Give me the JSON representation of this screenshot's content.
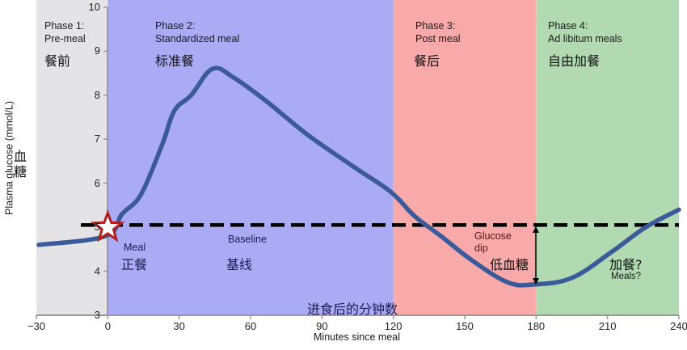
{
  "chart_data": {
    "type": "line",
    "title": "",
    "xlabel": "Minutes since meal",
    "xlabel_cn": "进食后的分钟数",
    "ylabel": "Plasma glucose (mmol/L)",
    "ylabel_cn": "血糖",
    "xlim": [
      -30,
      240
    ],
    "ylim": [
      3,
      10
    ],
    "x_ticks": [
      -30,
      0,
      30,
      60,
      90,
      120,
      150,
      180,
      210,
      240
    ],
    "x_tick_labels": [
      "−30",
      "0",
      "30",
      "60",
      "90",
      "120",
      "150",
      "180",
      "210",
      "240"
    ],
    "y_ticks": [
      3,
      4,
      5,
      6,
      7,
      8,
      9,
      10
    ],
    "grid": false,
    "series": [
      {
        "name": "Plasma glucose",
        "color": "#3a5a9a",
        "x": [
          -29,
          -1,
          6,
          14,
          23,
          28,
          35,
          44,
          53,
          67,
          84,
          104,
          119,
          129,
          140,
          153,
          168,
          179,
          195,
          212,
          226,
          240
        ],
        "y": [
          4.6,
          4.8,
          5.3,
          5.75,
          6.9,
          7.65,
          8.0,
          8.6,
          8.4,
          7.85,
          7.1,
          6.35,
          5.8,
          5.25,
          4.8,
          4.25,
          3.75,
          3.7,
          3.85,
          4.45,
          5.0,
          5.4
        ]
      }
    ],
    "baseline": {
      "y": 5.05,
      "style": "dashed",
      "color": "#000000",
      "label": "Baseline",
      "label_cn": "基线"
    },
    "phases": [
      {
        "x_start": -30,
        "x_end": 0,
        "title": "Phase 1:",
        "subtitle": "Pre-meal",
        "cn": "餐前",
        "color": "#e4e4e6"
      },
      {
        "x_start": 0,
        "x_end": 120,
        "title": "Phase 2:",
        "subtitle": "Standardized meal",
        "cn": "标准餐",
        "color": "#aaaaf5"
      },
      {
        "x_start": 120,
        "x_end": 180,
        "title": "Phase 3:",
        "subtitle": "Post meal",
        "cn": "餐后",
        "color": "#f8aaaa"
      },
      {
        "x_start": 180,
        "x_end": 240,
        "title": "Phase 4:",
        "subtitle": "Ad libitum meals",
        "cn": "自由加餐",
        "color": "#b2dab2"
      }
    ],
    "annotations": [
      {
        "text": "Meal",
        "cn": "正餐",
        "x": 0,
        "y": 5.05,
        "marker": "star",
        "marker_color": "#b21e1e"
      },
      {
        "text": "Glucose dip",
        "cn": "低血糖",
        "x": 180,
        "y_from": 5.05,
        "y_to": 3.7,
        "type": "double-arrow"
      },
      {
        "text": "Meals?",
        "cn": "加餐?",
        "x": 215,
        "y": 4.0
      }
    ]
  },
  "labels": {
    "phase1_title": "Phase 1:",
    "phase1_sub": "Pre-meal",
    "phase1_cn": "餐前",
    "phase2_title": "Phase 2:",
    "phase2_sub": "Standardized meal",
    "phase2_cn": "标准餐",
    "phase3_title": "Phase 3:",
    "phase3_sub": "Post meal",
    "phase3_cn": "餐后",
    "phase4_title": "Phase 4:",
    "phase4_sub": "Ad libitum meals",
    "phase4_cn": "自由加餐",
    "meal": "Meal",
    "meal_cn": "正餐",
    "baseline": "Baseline",
    "baseline_cn": "基线",
    "glucose": "Glucose",
    "dip": "dip",
    "dip_cn": "低血糖",
    "meals_q": "Meals?",
    "meals_q_cn": "加餐?",
    "xlabel": "Minutes since meal",
    "xlabel_cn": "进食后的分钟数",
    "ylabel": "Plasma glucose (mmol/L)",
    "ylabel_cn1": "血",
    "ylabel_cn2": "糖"
  },
  "y_tick_labels": [
    "10",
    "9",
    "8",
    "7",
    "6",
    "5",
    "4",
    "3"
  ],
  "x_tick_labels": [
    "−30",
    "0",
    "30",
    "60",
    "90",
    "120",
    "150",
    "180",
    "210",
    "240"
  ]
}
